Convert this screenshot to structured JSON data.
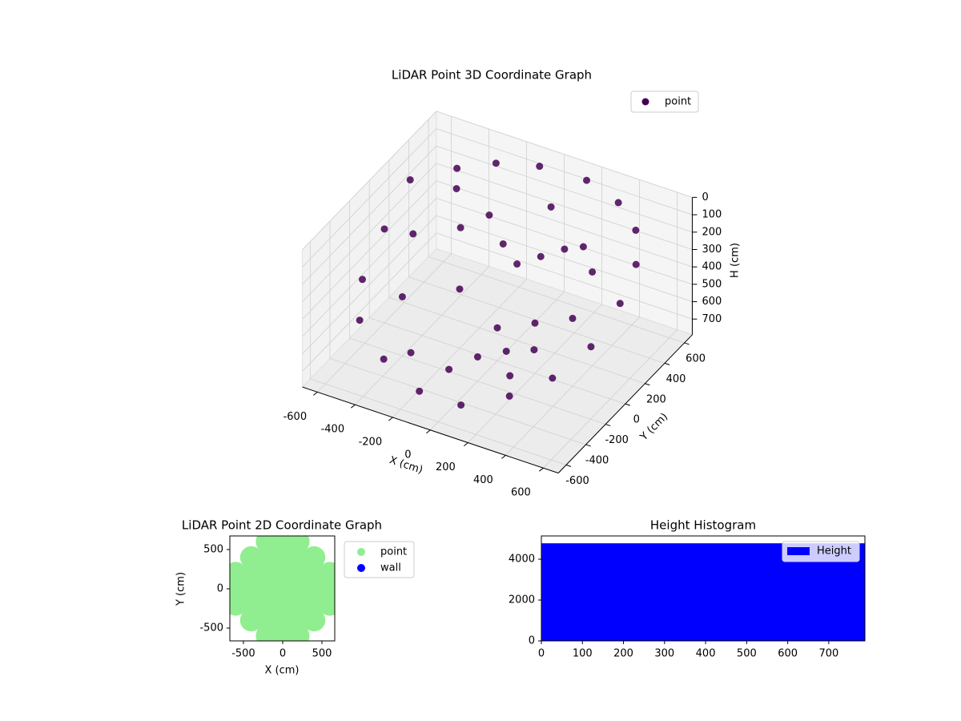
{
  "chart_data": [
    {
      "type": "scatter3d",
      "title": "LiDAR Point 3D Coordinate Graph",
      "xlabel": "X (cm)",
      "ylabel": "Y (cm)",
      "zlabel": "H (cm)",
      "xlim": [
        -680,
        680
      ],
      "ylim": [
        -680,
        680
      ],
      "zlim": [
        0,
        790
      ],
      "z_inverted": true,
      "xticks": [
        -600,
        -400,
        -200,
        0,
        200,
        400,
        600
      ],
      "yticks": [
        -600,
        -400,
        -200,
        0,
        200,
        400,
        600
      ],
      "zticks": [
        0,
        100,
        200,
        300,
        400,
        500,
        600,
        700
      ],
      "legend": "upper right",
      "grid": true,
      "series": [
        {
          "name": "point",
          "color": "#440154",
          "x": [
            -620,
            -600,
            -560,
            -480,
            -300,
            -100,
            100,
            300,
            450,
            550,
            600,
            580,
            500,
            350,
            150,
            -100,
            -300,
            -450,
            -200,
            -100,
            0,
            100,
            200,
            -300,
            -200,
            0,
            200,
            0,
            -100,
            100,
            300,
            400,
            -400,
            -500,
            300,
            400,
            250,
            -250,
            -400,
            50
          ],
          "y": [
            300,
            0,
            -300,
            -480,
            -580,
            -600,
            -560,
            -450,
            -300,
            -100,
            100,
            300,
            450,
            560,
            620,
            620,
            560,
            450,
            300,
            250,
            200,
            250,
            300,
            200,
            0,
            0,
            0,
            -200,
            -300,
            -100,
            -200,
            0,
            -200,
            100,
            300,
            200,
            -350,
            -400,
            350,
            450
          ],
          "z": [
            150,
            250,
            350,
            450,
            550,
            650,
            680,
            620,
            550,
            450,
            300,
            200,
            120,
            80,
            60,
            70,
            90,
            110,
            200,
            300,
            350,
            300,
            250,
            250,
            450,
            600,
            500,
            650,
            700,
            640,
            500,
            400,
            450,
            300,
            200,
            250,
            580,
            600,
            150,
            150
          ]
        }
      ]
    },
    {
      "type": "scatter",
      "title": "LiDAR Point 2D Coordinate Graph",
      "xlabel": "X (cm)",
      "ylabel": "Y (cm)",
      "xlim": [
        -673,
        663
      ],
      "ylim": [
        -663,
        673
      ],
      "xticks": [
        -500,
        0,
        500
      ],
      "yticks": [
        -500,
        0,
        500
      ],
      "legend": "outside upper left",
      "series": [
        {
          "name": "point",
          "color": "#90ee90",
          "x": [
            -200,
            0,
            200,
            -400,
            -200,
            0,
            200,
            400,
            -600,
            -400,
            -200,
            0,
            200,
            400,
            600,
            -600,
            -400,
            -200,
            0,
            200,
            400,
            600,
            -600,
            -400,
            -200,
            0,
            200,
            400,
            600,
            -400,
            -200,
            0,
            200,
            400,
            -200,
            0,
            200
          ],
          "y": [
            -600,
            -600,
            -600,
            -400,
            -400,
            -400,
            -400,
            -400,
            -200,
            -200,
            -200,
            -200,
            -200,
            -200,
            -200,
            0,
            0,
            0,
            0,
            0,
            0,
            0,
            200,
            200,
            200,
            200,
            200,
            200,
            200,
            400,
            400,
            400,
            400,
            400,
            600,
            600,
            600
          ]
        },
        {
          "name": "wall",
          "color": "#0000ff",
          "x": [],
          "y": []
        }
      ]
    },
    {
      "type": "histogram",
      "title": "Height Histogram",
      "bins": [
        0,
        78.8,
        157.6,
        236.4,
        315.2,
        394,
        472.8,
        551.6,
        630.4,
        709.2,
        788
      ],
      "series": [
        {
          "name": "Height",
          "color": "#0000ff",
          "values": [
            4780,
            4780,
            4780,
            4780,
            4780,
            4780,
            4780,
            4780,
            4780,
            4780
          ]
        }
      ],
      "xlim": [
        0,
        788
      ],
      "ylim": [
        0,
        5140
      ],
      "xticks": [
        0,
        100,
        200,
        300,
        400,
        500,
        600,
        700
      ],
      "yticks": [
        0,
        2000,
        4000
      ],
      "legend": "upper right"
    }
  ]
}
